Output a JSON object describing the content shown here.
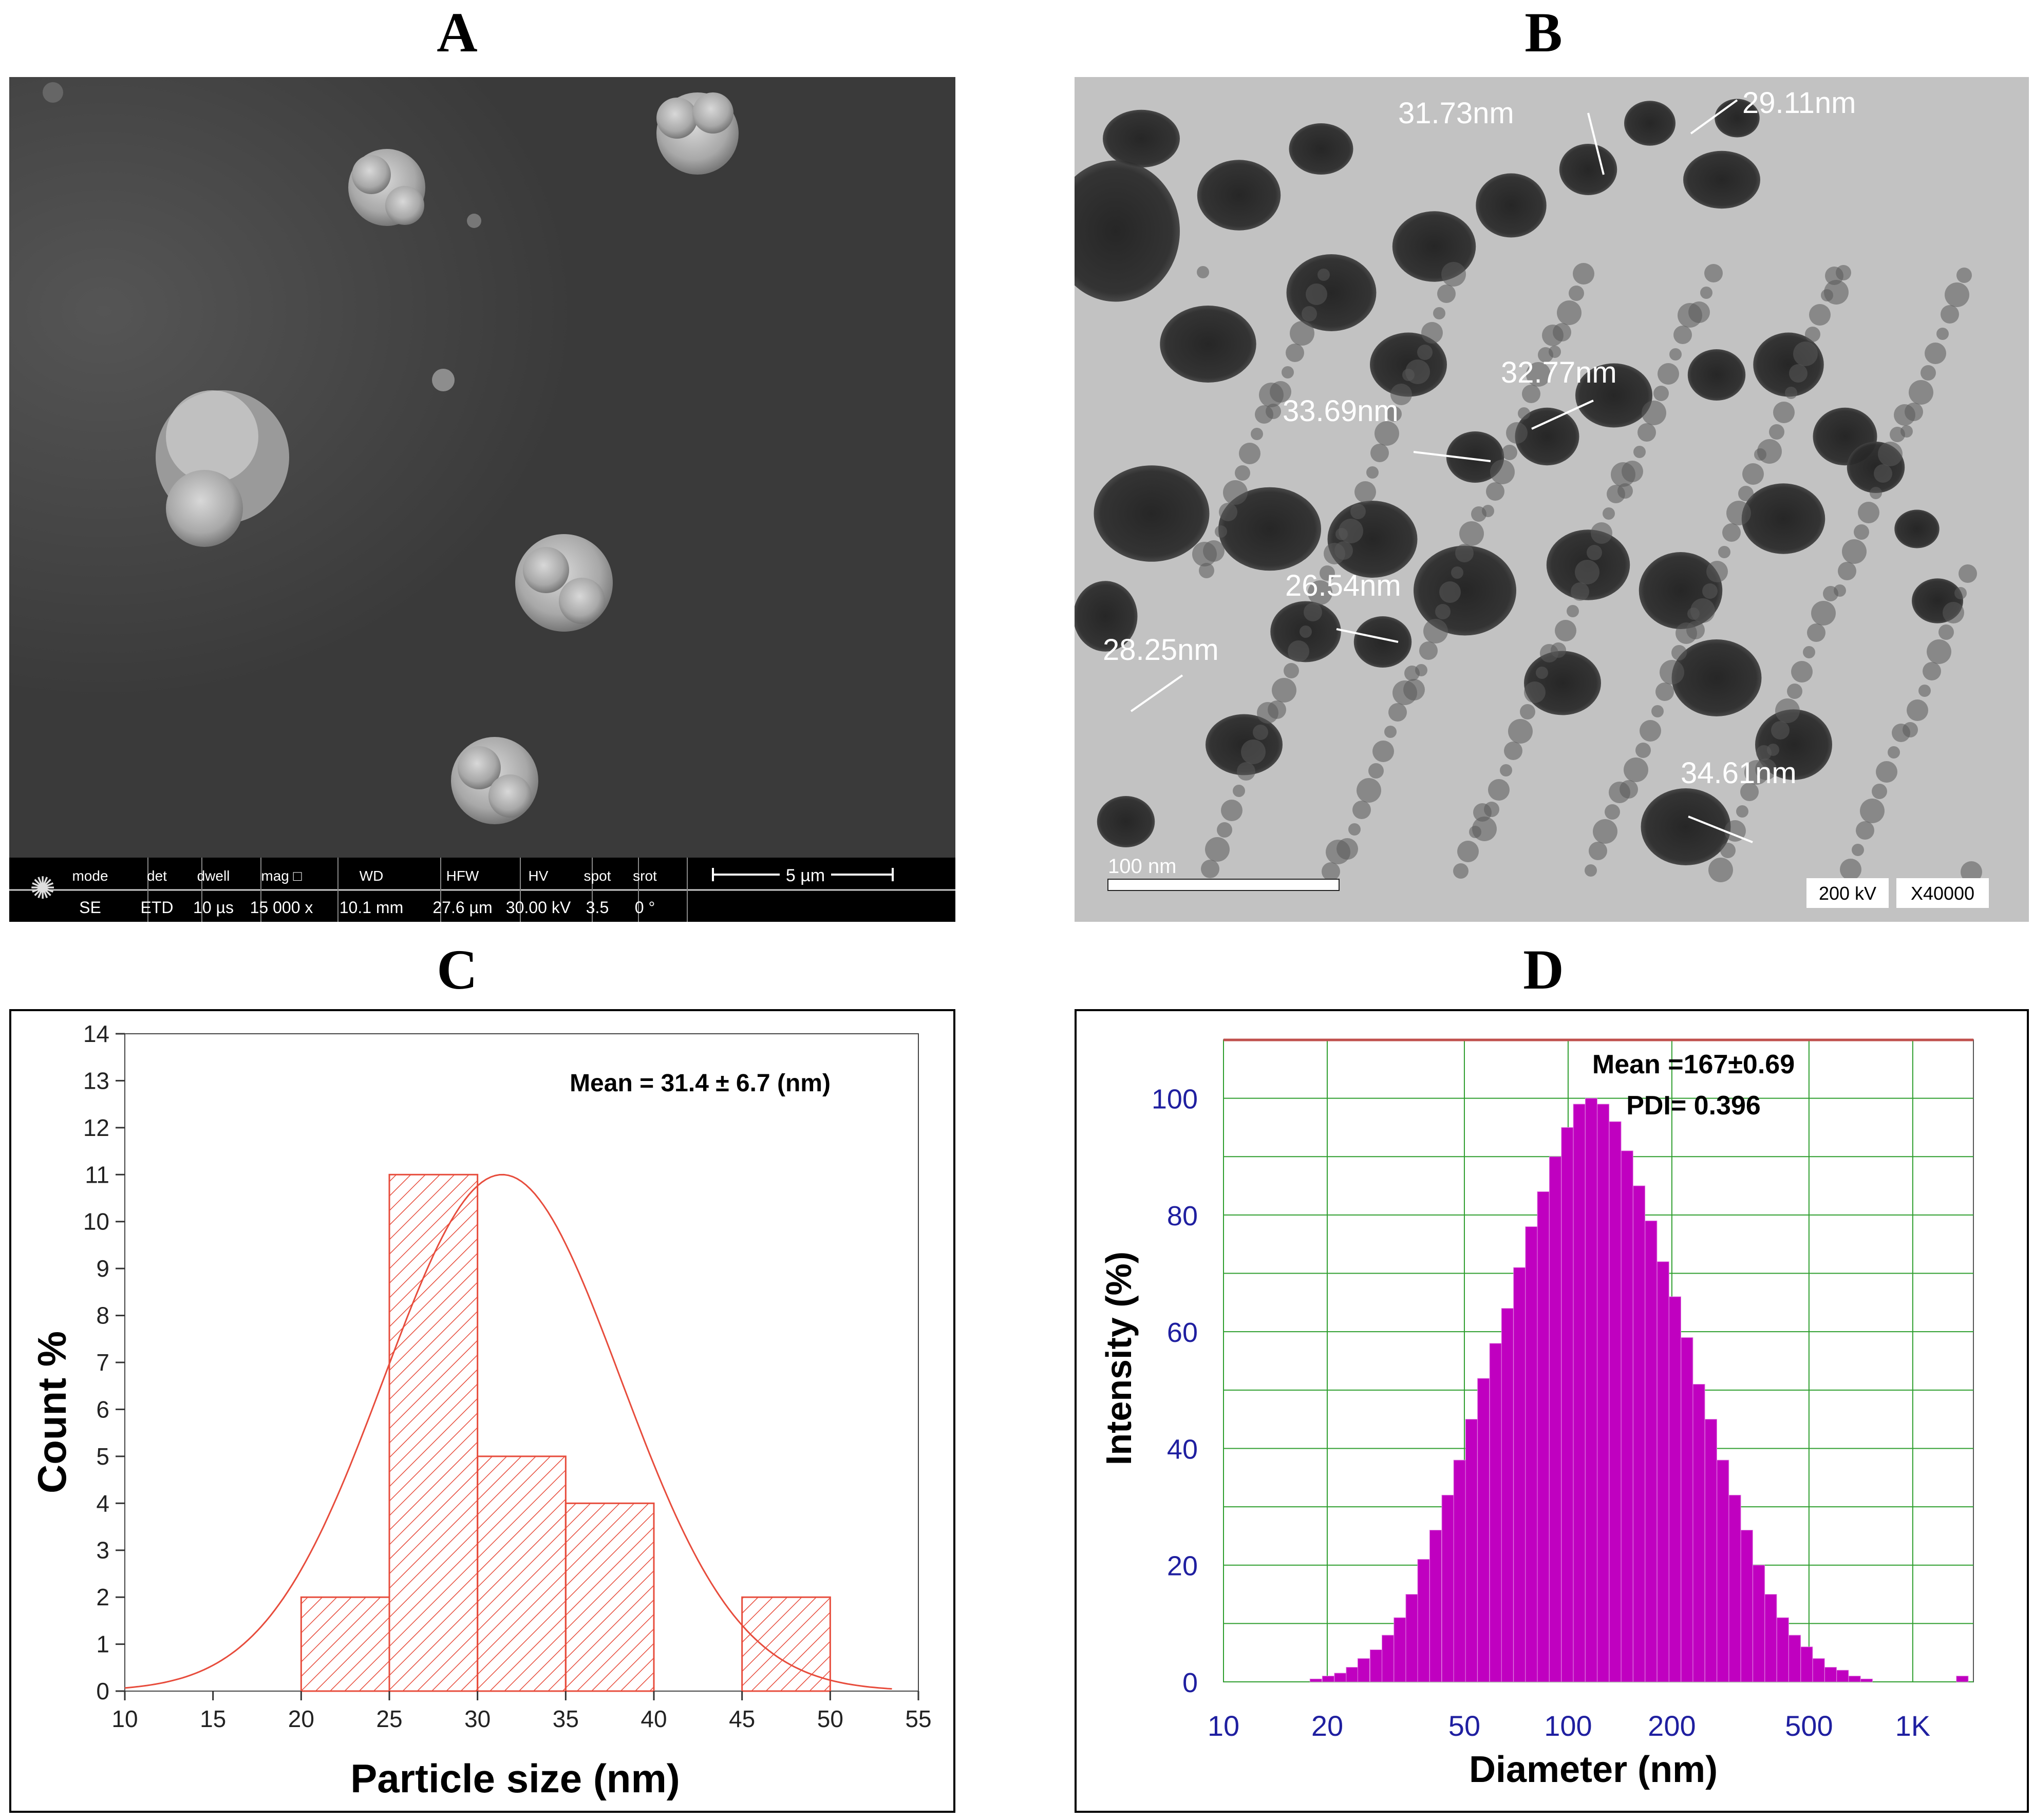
{
  "panels": {
    "A": "A",
    "B": "B",
    "C": "C",
    "D": "D"
  },
  "sem": {
    "scale_bar": "5 µm",
    "info_headers": [
      "mode",
      "det",
      "dwell",
      "mag □",
      "WD",
      "HFW",
      "HV",
      "spot",
      "srot"
    ],
    "info_values": [
      "SE",
      "ETD",
      "10 µs",
      "15 000 x",
      "10.1 mm",
      "27.6 µm",
      "30.00 kV",
      "3.5",
      "0 °"
    ]
  },
  "tem": {
    "measurements": [
      "31.73nm",
      "29.11nm",
      "32.77nm",
      "33.69nm",
      "26.54nm",
      "28.25nm",
      "34.61nm"
    ],
    "scale_bar": "100 nm",
    "voltage": "200 kV",
    "magnification": "X40000"
  },
  "chart_data": [
    {
      "type": "bar",
      "panel": "C",
      "xlabel": "Particle size (nm)",
      "ylabel": "Count %",
      "annotation": "Mean = 31.4 ± 6.7 (nm)",
      "xlim": [
        10,
        55
      ],
      "ylim": [
        0,
        14
      ],
      "xticks": [
        10,
        15,
        20,
        25,
        30,
        35,
        40,
        45,
        50,
        55
      ],
      "yticks": [
        0,
        1,
        2,
        3,
        4,
        5,
        6,
        7,
        8,
        9,
        10,
        11,
        12,
        13,
        14
      ],
      "bins": [
        {
          "from": 20,
          "to": 25,
          "count": 2
        },
        {
          "from": 25,
          "to": 30,
          "count": 11
        },
        {
          "from": 30,
          "to": 35,
          "count": 5
        },
        {
          "from": 35,
          "to": 40,
          "count": 4
        },
        {
          "from": 45,
          "to": 50,
          "count": 2
        }
      ],
      "fit": {
        "type": "gaussian",
        "mean": 31.4,
        "sd": 6.7,
        "peak": 11
      },
      "colors": {
        "bars": "#e74c3c",
        "fit": "#e74c3c"
      }
    },
    {
      "type": "bar",
      "panel": "D",
      "xlabel": "Diameter (nm)",
      "ylabel": "Intensity (%)",
      "annotation": [
        "Mean =167±0.69",
        "PDI= 0.396"
      ],
      "x_scale": "log",
      "xlim": [
        10,
        1500
      ],
      "ylim": [
        0,
        110
      ],
      "xtick_labels": [
        {
          "value": 10,
          "label": "10"
        },
        {
          "value": 20,
          "label": "20"
        },
        {
          "value": 50,
          "label": "50"
        },
        {
          "value": 100,
          "label": "100"
        },
        {
          "value": 200,
          "label": "200"
        },
        {
          "value": 500,
          "label": "500"
        },
        {
          "value": 1000,
          "label": "1K"
        }
      ],
      "yticks": [
        0,
        20,
        40,
        60,
        80,
        100
      ],
      "grid": true,
      "x": [
        18.6,
        20.2,
        21.9,
        23.7,
        25.6,
        27.8,
        30.1,
        32.6,
        35.3,
        38.2,
        41.4,
        44.9,
        48.6,
        52.6,
        57.0,
        61.8,
        66.9,
        72.5,
        78.5,
        85.0,
        92.1,
        99.8,
        108.1,
        117.1,
        126.8,
        137.4,
        148.8,
        161.2,
        174.6,
        189.2,
        204.9,
        222.0,
        240.4,
        260.5,
        282.2,
        305.7,
        331.1,
        358.7,
        388.6,
        421.0,
        456.0,
        494.0,
        535.1,
        579.7,
        628.0,
        680.3,
        737.0,
        798.3,
        864.8,
        936.8,
        1014.8,
        1099.3,
        1190.9,
        1290.1,
        1397.5
      ],
      "values": [
        0.5,
        1,
        1.5,
        2.5,
        4,
        5.5,
        8,
        11,
        15,
        21,
        26,
        32,
        38,
        45,
        52,
        58,
        64,
        71,
        78,
        84,
        90,
        95,
        99,
        100,
        99,
        96,
        91,
        85,
        79,
        72,
        66,
        59,
        51,
        45,
        38,
        32,
        26,
        20,
        15,
        11,
        8,
        6,
        4,
        2.5,
        2,
        1,
        0.5,
        0,
        0,
        0,
        0,
        0,
        0,
        0,
        1
      ],
      "colors": {
        "bars": "#c000c0",
        "grid": "#2e9e2e",
        "frame_top": "#c0504d",
        "ticks": "#1f1fa0"
      }
    }
  ]
}
